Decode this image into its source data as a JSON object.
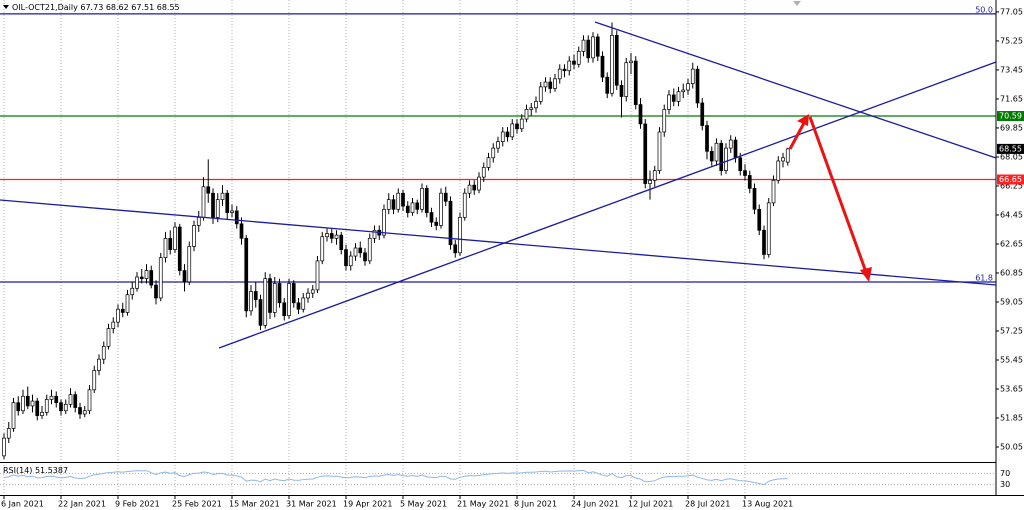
{
  "chart_data": {
    "type": "candlestick",
    "title": "OIL-OCT21,Daily",
    "up_color": "#ffffff",
    "down_color": "#000000",
    "grid": true,
    "ylim": [
      49.12,
      77.79
    ],
    "yticks": [
      77.05,
      75.25,
      73.45,
      71.65,
      69.85,
      68.05,
      66.25,
      64.45,
      62.65,
      60.85,
      59.05,
      57.25,
      55.45,
      53.65,
      51.85,
      50.05
    ],
    "xticks": [
      {
        "value": 0,
        "label": "6 Jan 2021"
      },
      {
        "value": 12,
        "label": "22 Jan 2021"
      },
      {
        "value": 24,
        "label": "9 Feb 2021"
      },
      {
        "value": 36,
        "label": "25 Feb 2021"
      },
      {
        "value": 48,
        "label": "15 Mar 2021"
      },
      {
        "value": 60,
        "label": "31 Mar 2021"
      },
      {
        "value": 72,
        "label": "19 Apr 2021"
      },
      {
        "value": 84,
        "label": "5 May 2021"
      },
      {
        "value": 96,
        "label": "21 May 2021"
      },
      {
        "value": 108,
        "label": "8 Jun 2021"
      },
      {
        "value": 120,
        "label": "24 Jun 2021"
      },
      {
        "value": 132,
        "label": "12 Jul 2021"
      },
      {
        "value": 144,
        "label": "28 Jul 2021"
      },
      {
        "value": 156,
        "label": "13 Aug 2021"
      }
    ],
    "levels": [
      {
        "value": 70.59,
        "color": "#007a00"
      },
      {
        "value": 66.65,
        "color": "#ff2020"
      }
    ],
    "fib_levels": [
      {
        "value": 76.93,
        "label": "50.0",
        "color": "#1c1ca0"
      },
      {
        "value": 60.29,
        "label": "61.8",
        "color": "#1c1ca0"
      }
    ],
    "candles": [
      [
        49.5,
        50.9,
        49.3,
        50.6
      ],
      [
        50.6,
        51.6,
        50.3,
        51.2
      ],
      [
        51.2,
        53.1,
        51.0,
        52.8
      ],
      [
        52.8,
        53.2,
        52.0,
        52.3
      ],
      [
        52.3,
        53.6,
        52.1,
        53.2
      ],
      [
        53.2,
        53.8,
        52.4,
        52.6
      ],
      [
        52.6,
        53.3,
        52.2,
        52.9
      ],
      [
        52.9,
        53.1,
        51.7,
        52.0
      ],
      [
        52.0,
        52.6,
        51.8,
        52.2
      ],
      [
        52.2,
        53.3,
        52.0,
        53.0
      ],
      [
        53.0,
        53.6,
        52.7,
        53.2
      ],
      [
        53.2,
        53.5,
        52.5,
        52.8
      ],
      [
        52.8,
        53.0,
        52.0,
        52.3
      ],
      [
        52.3,
        53.0,
        52.1,
        52.7
      ],
      [
        52.7,
        53.7,
        52.5,
        53.3
      ],
      [
        53.3,
        53.5,
        52.2,
        52.5
      ],
      [
        52.5,
        52.8,
        51.8,
        52.1
      ],
      [
        52.1,
        52.6,
        51.9,
        52.3
      ],
      [
        52.3,
        53.9,
        52.1,
        53.6
      ],
      [
        53.6,
        55.1,
        53.4,
        54.8
      ],
      [
        54.8,
        55.8,
        54.5,
        55.5
      ],
      [
        55.5,
        56.6,
        55.2,
        56.3
      ],
      [
        56.3,
        57.7,
        56.1,
        57.4
      ],
      [
        57.4,
        58.1,
        57.1,
        57.8
      ],
      [
        57.8,
        58.9,
        57.5,
        58.6
      ],
      [
        58.6,
        59.0,
        58.1,
        58.4
      ],
      [
        58.4,
        59.8,
        58.2,
        59.5
      ],
      [
        59.5,
        60.3,
        59.2,
        59.9
      ],
      [
        59.9,
        60.9,
        59.7,
        60.6
      ],
      [
        60.6,
        61.1,
        60.2,
        60.5
      ],
      [
        60.5,
        61.4,
        60.2,
        61.0
      ],
      [
        61.0,
        61.3,
        59.9,
        60.1
      ],
      [
        60.1,
        60.4,
        58.9,
        59.3
      ],
      [
        59.3,
        62.1,
        59.1,
        61.8
      ],
      [
        61.8,
        63.4,
        61.5,
        63.0
      ],
      [
        63.0,
        63.5,
        62.0,
        62.3
      ],
      [
        62.3,
        64.0,
        62.1,
        63.7
      ],
      [
        63.7,
        63.9,
        60.7,
        61.0
      ],
      [
        61.0,
        61.4,
        59.7,
        60.3
      ],
      [
        60.3,
        62.8,
        60.1,
        62.5
      ],
      [
        62.5,
        64.1,
        62.2,
        63.8
      ],
      [
        63.8,
        64.7,
        63.4,
        64.3
      ],
      [
        64.3,
        66.8,
        64.1,
        66.2
      ],
      [
        66.2,
        67.9,
        65.2,
        65.8
      ],
      [
        65.8,
        66.1,
        63.9,
        64.3
      ],
      [
        64.3,
        65.8,
        64.0,
        65.4
      ],
      [
        65.4,
        66.3,
        65.0,
        65.8
      ],
      [
        65.8,
        66.0,
        64.2,
        64.6
      ],
      [
        64.6,
        65.1,
        64.3,
        64.7
      ],
      [
        64.7,
        65.0,
        63.6,
        63.9
      ],
      [
        63.9,
        64.3,
        62.6,
        63.0
      ],
      [
        63.0,
        63.2,
        58.1,
        58.5
      ],
      [
        58.5,
        60.1,
        58.2,
        59.7
      ],
      [
        59.7,
        60.3,
        58.7,
        59.2
      ],
      [
        59.2,
        59.5,
        57.3,
        57.6
      ],
      [
        57.6,
        60.9,
        57.4,
        60.5
      ],
      [
        60.5,
        60.8,
        58.0,
        58.4
      ],
      [
        58.4,
        60.6,
        58.1,
        60.2
      ],
      [
        60.2,
        60.5,
        58.7,
        59.0
      ],
      [
        59.0,
        59.3,
        57.9,
        58.2
      ],
      [
        58.2,
        60.5,
        58.0,
        60.2
      ],
      [
        60.2,
        60.4,
        58.7,
        59.0
      ],
      [
        59.0,
        59.3,
        58.3,
        58.6
      ],
      [
        58.6,
        59.6,
        58.4,
        59.3
      ],
      [
        59.3,
        59.9,
        59.0,
        59.6
      ],
      [
        59.6,
        60.1,
        59.3,
        59.8
      ],
      [
        59.8,
        61.9,
        59.6,
        61.6
      ],
      [
        61.6,
        63.4,
        61.4,
        63.1
      ],
      [
        63.1,
        63.6,
        62.8,
        63.3
      ],
      [
        63.3,
        63.6,
        62.7,
        63.0
      ],
      [
        63.0,
        63.5,
        62.6,
        63.2
      ],
      [
        63.2,
        63.4,
        62.0,
        62.3
      ],
      [
        62.3,
        62.6,
        61.0,
        61.3
      ],
      [
        61.3,
        62.2,
        61.0,
        61.9
      ],
      [
        61.9,
        62.7,
        61.6,
        62.4
      ],
      [
        62.4,
        62.8,
        61.8,
        62.1
      ],
      [
        62.1,
        62.4,
        61.3,
        61.6
      ],
      [
        61.6,
        63.3,
        61.4,
        63.0
      ],
      [
        63.0,
        63.8,
        62.7,
        63.5
      ],
      [
        63.5,
        63.8,
        62.9,
        63.2
      ],
      [
        63.2,
        65.1,
        63.0,
        64.8
      ],
      [
        64.8,
        65.8,
        64.5,
        65.4
      ],
      [
        65.4,
        65.7,
        64.5,
        64.8
      ],
      [
        64.8,
        66.1,
        64.6,
        65.8
      ],
      [
        65.8,
        66.0,
        64.7,
        65.0
      ],
      [
        65.0,
        65.3,
        64.3,
        64.6
      ],
      [
        64.6,
        65.5,
        64.4,
        65.2
      ],
      [
        65.2,
        65.4,
        64.5,
        64.8
      ],
      [
        64.8,
        66.4,
        64.6,
        66.1
      ],
      [
        66.1,
        66.3,
        64.3,
        64.6
      ],
      [
        64.6,
        64.9,
        63.7,
        64.0
      ],
      [
        64.0,
        64.3,
        63.5,
        63.8
      ],
      [
        63.8,
        66.1,
        63.6,
        65.8
      ],
      [
        65.8,
        66.2,
        65.0,
        65.3
      ],
      [
        65.3,
        65.6,
        62.3,
        62.6
      ],
      [
        62.6,
        62.9,
        61.8,
        62.1
      ],
      [
        62.1,
        64.6,
        61.9,
        64.3
      ],
      [
        64.3,
        66.1,
        64.1,
        65.8
      ],
      [
        65.8,
        66.6,
        65.5,
        66.3
      ],
      [
        66.3,
        66.6,
        65.7,
        66.0
      ],
      [
        66.0,
        67.1,
        65.8,
        66.8
      ],
      [
        66.8,
        67.7,
        66.5,
        67.4
      ],
      [
        67.4,
        68.3,
        67.2,
        68.0
      ],
      [
        68.0,
        68.9,
        67.7,
        68.6
      ],
      [
        68.6,
        69.3,
        68.3,
        69.0
      ],
      [
        69.0,
        69.9,
        68.7,
        69.6
      ],
      [
        69.6,
        69.9,
        69.0,
        69.3
      ],
      [
        69.3,
        70.4,
        69.1,
        70.1
      ],
      [
        70.1,
        70.4,
        69.5,
        69.8
      ],
      [
        69.8,
        70.7,
        69.6,
        70.4
      ],
      [
        70.4,
        71.3,
        70.2,
        71.0
      ],
      [
        71.0,
        71.4,
        70.6,
        71.1
      ],
      [
        71.1,
        71.8,
        70.8,
        71.5
      ],
      [
        71.5,
        72.7,
        71.3,
        72.4
      ],
      [
        72.4,
        73.0,
        72.1,
        72.7
      ],
      [
        72.7,
        73.0,
        72.0,
        72.3
      ],
      [
        72.3,
        73.2,
        72.1,
        72.9
      ],
      [
        72.9,
        73.8,
        72.6,
        73.5
      ],
      [
        73.5,
        73.8,
        73.0,
        73.4
      ],
      [
        73.4,
        74.3,
        73.1,
        74.0
      ],
      [
        74.0,
        74.4,
        73.5,
        73.8
      ],
      [
        73.8,
        74.9,
        73.6,
        74.6
      ],
      [
        74.6,
        75.6,
        74.3,
        75.3
      ],
      [
        75.3,
        75.6,
        73.9,
        74.2
      ],
      [
        74.2,
        75.8,
        73.9,
        75.5
      ],
      [
        75.5,
        75.7,
        74.0,
        74.3
      ],
      [
        74.3,
        74.6,
        72.7,
        73.0
      ],
      [
        73.0,
        73.3,
        71.7,
        72.0
      ],
      [
        72.0,
        76.4,
        71.8,
        75.6
      ],
      [
        75.6,
        75.9,
        72.2,
        72.5
      ],
      [
        72.5,
        72.8,
        70.5,
        71.8
      ],
      [
        71.8,
        74.2,
        71.5,
        73.9
      ],
      [
        73.9,
        74.5,
        73.2,
        74.0
      ],
      [
        74.0,
        74.3,
        71.0,
        71.3
      ],
      [
        71.3,
        71.7,
        69.8,
        70.1
      ],
      [
        70.1,
        70.4,
        66.1,
        66.4
      ],
      [
        66.4,
        67.2,
        65.4,
        66.6
      ],
      [
        66.6,
        67.5,
        66.2,
        67.2
      ],
      [
        67.2,
        69.9,
        67.0,
        69.6
      ],
      [
        69.6,
        71.3,
        69.3,
        71.0
      ],
      [
        71.0,
        72.2,
        70.7,
        71.9
      ],
      [
        71.9,
        72.3,
        71.2,
        71.5
      ],
      [
        71.5,
        72.4,
        71.2,
        72.1
      ],
      [
        72.1,
        72.6,
        71.7,
        72.2
      ],
      [
        72.2,
        72.9,
        71.9,
        72.6
      ],
      [
        72.6,
        73.9,
        72.3,
        73.5
      ],
      [
        73.5,
        73.7,
        71.1,
        71.4
      ],
      [
        71.4,
        71.7,
        69.7,
        70.0
      ],
      [
        70.0,
        70.3,
        67.9,
        68.4
      ],
      [
        68.4,
        68.7,
        67.5,
        67.8
      ],
      [
        67.8,
        69.2,
        67.5,
        68.9
      ],
      [
        68.9,
        69.1,
        66.9,
        67.2
      ],
      [
        67.2,
        68.9,
        67.0,
        68.6
      ],
      [
        68.6,
        69.4,
        68.3,
        69.1
      ],
      [
        69.1,
        69.3,
        67.7,
        68.0
      ],
      [
        68.0,
        68.3,
        66.9,
        67.2
      ],
      [
        67.2,
        67.6,
        66.6,
        66.9
      ],
      [
        66.9,
        67.2,
        65.8,
        66.1
      ],
      [
        66.1,
        66.4,
        64.5,
        64.8
      ],
      [
        64.8,
        65.1,
        63.2,
        63.5
      ],
      [
        63.5,
        63.8,
        61.7,
        62.0
      ],
      [
        62.0,
        65.5,
        61.8,
        65.2
      ],
      [
        65.2,
        66.9,
        65.0,
        66.6
      ],
      [
        66.6,
        68.1,
        66.4,
        67.8
      ],
      [
        67.8,
        68.3,
        67.4,
        68.0
      ],
      [
        67.73,
        68.62,
        67.51,
        68.55
      ]
    ],
    "rsi": {
      "name": "RSI(14)",
      "color": "#8fb8e6",
      "ylim": [
        0,
        100
      ],
      "yticks": [
        70,
        30
      ],
      "values": [
        55,
        58,
        64,
        60,
        63,
        58,
        60,
        54,
        55,
        59,
        60,
        57,
        54,
        56,
        59,
        54,
        52,
        53,
        60,
        65,
        67,
        70,
        73,
        74,
        76,
        74,
        77,
        78,
        80,
        79,
        80,
        72,
        66,
        72,
        75,
        70,
        73,
        62,
        59,
        66,
        70,
        71,
        75,
        73,
        66,
        69,
        70,
        64,
        64,
        61,
        57,
        42,
        46,
        45,
        40,
        50,
        44,
        50,
        46,
        44,
        50,
        46,
        45,
        48,
        49,
        50,
        56,
        60,
        61,
        60,
        60,
        57,
        54,
        56,
        58,
        57,
        55,
        59,
        61,
        60,
        64,
        66,
        63,
        66,
        62,
        60,
        62,
        60,
        64,
        58,
        56,
        55,
        60,
        59,
        50,
        49,
        56,
        60,
        62,
        61,
        63,
        65,
        67,
        69,
        70,
        72,
        70,
        72,
        71,
        72,
        74,
        74,
        75,
        77,
        78,
        75,
        77,
        78,
        78,
        79,
        78,
        80,
        81,
        72,
        76,
        70,
        64,
        60,
        70,
        58,
        55,
        62,
        62,
        53,
        50,
        40,
        41,
        44,
        52,
        57,
        59,
        58,
        60,
        60,
        61,
        64,
        56,
        52,
        47,
        45,
        49,
        44,
        49,
        51,
        47,
        44,
        43,
        41,
        37,
        34,
        30,
        42,
        47,
        50,
        51,
        51.5387
      ]
    }
  }
}
